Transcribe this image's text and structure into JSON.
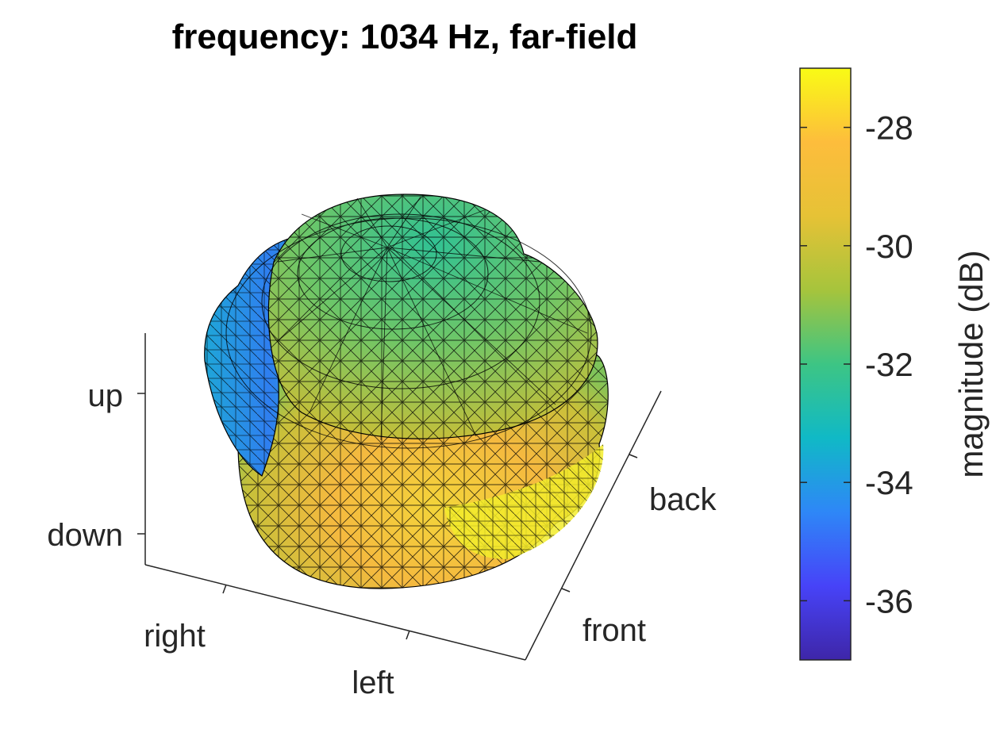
{
  "chart_data": {
    "type": "surface",
    "title": "frequency: 1034 Hz, far-field",
    "z_ticks": [
      "up",
      "down"
    ],
    "x_ticks": [
      "right",
      "left"
    ],
    "y_ticks": [
      "front",
      "back"
    ],
    "colorbar": {
      "label": "magnitude (dB)",
      "ticks": [
        -28,
        -30,
        -32,
        -34,
        -36
      ],
      "tick_labels": [
        "-28",
        "-30",
        "-32",
        "-34",
        "-36"
      ],
      "range": [
        -37,
        -27
      ],
      "colormap": "parula",
      "colors": [
        "#3e26a8",
        "#4743f8",
        "#2e87f7",
        "#10b9c6",
        "#3dc584",
        "#a6c43c",
        "#e6c236",
        "#fdbd3c",
        "#f9fb15"
      ]
    },
    "grid": false
  }
}
